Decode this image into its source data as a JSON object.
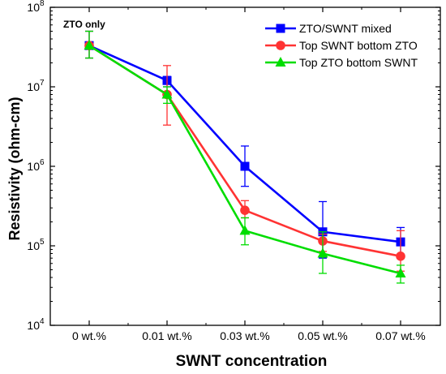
{
  "chart_data": {
    "type": "line",
    "title": "",
    "xlabel": "SWNT concentration",
    "ylabel": "Resistivity (ohm-cm)",
    "yscale": "log",
    "ylim": [
      10000,
      100000000
    ],
    "categories": [
      "0 wt.%",
      "0.01 wt.%",
      "0.03 wt.%",
      "0.05 wt.%",
      "0.07 wt.%"
    ],
    "y_ticks": [
      {
        "value": 10000,
        "base": "10",
        "exp": "4"
      },
      {
        "value": 100000,
        "base": "10",
        "exp": "5"
      },
      {
        "value": 1000000,
        "base": "10",
        "exp": "6"
      },
      {
        "value": 10000000,
        "base": "10",
        "exp": "7"
      },
      {
        "value": 100000000,
        "base": "10",
        "exp": "8"
      }
    ],
    "annotation": "ZTO only",
    "grid": false,
    "legend_position": "top-right",
    "series": [
      {
        "name": "ZTO/SWNT mixed",
        "color": "#0000ff",
        "marker": "square",
        "values": [
          33000000,
          12000000,
          1000000,
          150000,
          112000
        ],
        "err_low": [
          23000000,
          10000000,
          560000,
          70000,
          75000
        ],
        "err_high": [
          50000000,
          13500000,
          1800000,
          360000,
          170000
        ]
      },
      {
        "name": "Top SWNT bottom ZTO",
        "color": "#ff3333",
        "marker": "circle",
        "values": [
          33000000,
          8000000,
          280000,
          115000,
          74000
        ],
        "err_low": [
          23000000,
          3300000,
          225000,
          85000,
          48000
        ],
        "err_high": [
          50000000,
          18500000,
          370000,
          140000,
          155000
        ]
      },
      {
        "name": "Top ZTO bottom SWNT",
        "color": "#00dd00",
        "marker": "triangle",
        "values": [
          33000000,
          8000000,
          155000,
          80000,
          45000
        ],
        "err_low": [
          23000000,
          6200000,
          103000,
          45000,
          34000
        ],
        "err_high": [
          50000000,
          10000000,
          225000,
          150000,
          57000
        ]
      }
    ]
  }
}
